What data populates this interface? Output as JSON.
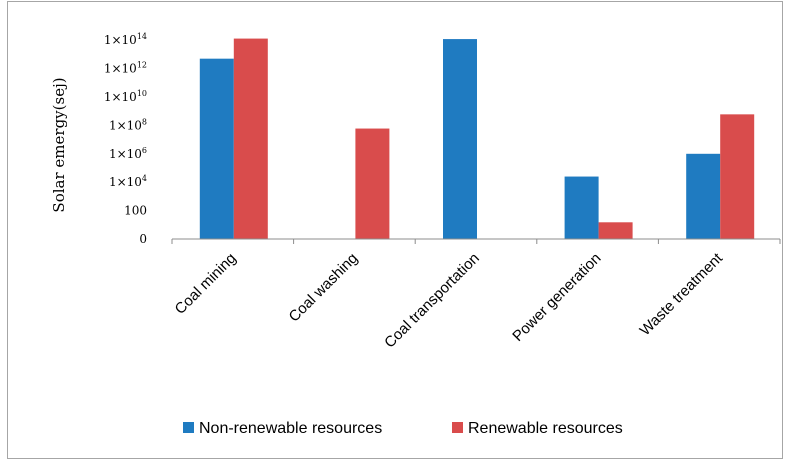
{
  "chart_data": {
    "type": "bar",
    "title": "",
    "xlabel": "",
    "ylabel": "Solar emergy(sej)",
    "yscale": "log",
    "ylim": [
      1,
      1000000000000000.0
    ],
    "y_ticks": [
      {
        "value": 1,
        "base": "0",
        "exp": ""
      },
      {
        "value": 100,
        "base": "100",
        "exp": ""
      },
      {
        "value": 10000,
        "base": "1×10",
        "exp": "4"
      },
      {
        "value": 1000000,
        "base": "1×10",
        "exp": "6"
      },
      {
        "value": 100000000,
        "base": "1×10",
        "exp": "8"
      },
      {
        "value": 10000000000,
        "base": "1×10",
        "exp": "10"
      },
      {
        "value": 1000000000000,
        "base": "1×10",
        "exp": "12"
      },
      {
        "value": 100000000000000,
        "base": "1×10",
        "exp": "14"
      }
    ],
    "categories": [
      "Coal mining",
      "Coal washing",
      "Coal transportation",
      "Power generation",
      "Waste treatment"
    ],
    "series": [
      {
        "name": "Non-renewable resources",
        "color": "#1f7bc1",
        "values": [
          5000000000000.0,
          null,
          120000000000000.0,
          25000.0,
          1000000.0
        ]
      },
      {
        "name": "Renewable resources",
        "color": "#d94c4c",
        "values": [
          130000000000000.0,
          60000000.0,
          null,
          15,
          600000000.0
        ]
      }
    ],
    "grid": false,
    "legend": "bottom-center"
  }
}
